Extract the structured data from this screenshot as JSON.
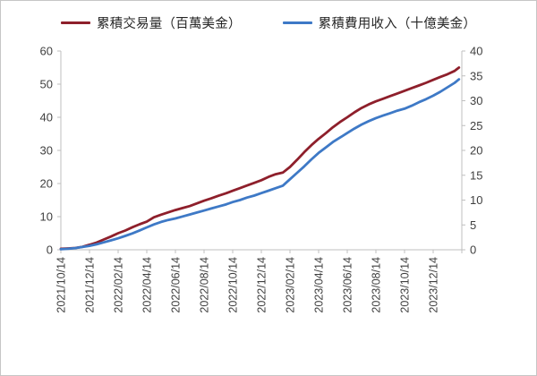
{
  "chart_data": {
    "type": "line",
    "legend_position": "top",
    "grid": false,
    "title": "",
    "xlabel": "",
    "ylabel_left": "",
    "ylabel_right": "",
    "x_tick_labels": [
      "2021/10/14",
      "2021/12/14",
      "2022/02/14",
      "2022/04/14",
      "2022/06/14",
      "2022/08/14",
      "2022/10/14",
      "2022/12/14",
      "2023/02/14",
      "2023/04/14",
      "2023/06/14",
      "2023/08/14",
      "2023/10/14",
      "2023/12/14"
    ],
    "left_axis": {
      "min": 0,
      "max": 60,
      "step": 10,
      "ticks": [
        0,
        10,
        20,
        30,
        40,
        50,
        60
      ]
    },
    "right_axis": {
      "min": 0,
      "max": 40,
      "step": 5,
      "ticks": [
        0,
        5,
        10,
        15,
        20,
        25,
        30,
        35,
        40
      ]
    },
    "axis_color": "#bfbfbf",
    "tick_label_color": "#3f3f3f",
    "series": [
      {
        "name": "累積交易量（百萬美金）",
        "axis": "left",
        "color": "#8e1f2b",
        "points": [
          [
            0,
            0.3
          ],
          [
            0.25,
            0.4
          ],
          [
            0.5,
            0.55
          ],
          [
            0.75,
            0.9
          ],
          [
            1,
            1.5
          ],
          [
            1.25,
            2.2
          ],
          [
            1.5,
            3.1
          ],
          [
            1.75,
            4.0
          ],
          [
            2,
            5.0
          ],
          [
            2.25,
            5.8
          ],
          [
            2.5,
            6.8
          ],
          [
            2.75,
            7.7
          ],
          [
            3,
            8.5
          ],
          [
            3.25,
            9.8
          ],
          [
            3.5,
            10.6
          ],
          [
            3.75,
            11.3
          ],
          [
            4,
            12.0
          ],
          [
            4.25,
            12.6
          ],
          [
            4.5,
            13.2
          ],
          [
            4.75,
            14.0
          ],
          [
            5,
            14.8
          ],
          [
            5.25,
            15.5
          ],
          [
            5.5,
            16.3
          ],
          [
            5.75,
            17.0
          ],
          [
            6,
            17.8
          ],
          [
            6.25,
            18.6
          ],
          [
            6.5,
            19.4
          ],
          [
            6.75,
            20.2
          ],
          [
            7,
            21.0
          ],
          [
            7.25,
            22.0
          ],
          [
            7.5,
            22.8
          ],
          [
            7.75,
            23.3
          ],
          [
            8,
            25.0
          ],
          [
            8.25,
            27.2
          ],
          [
            8.5,
            29.5
          ],
          [
            8.75,
            31.6
          ],
          [
            9,
            33.5
          ],
          [
            9.25,
            35.2
          ],
          [
            9.5,
            37.0
          ],
          [
            9.75,
            38.6
          ],
          [
            10,
            40.0
          ],
          [
            10.25,
            41.5
          ],
          [
            10.5,
            42.8
          ],
          [
            10.75,
            43.9
          ],
          [
            11,
            44.8
          ],
          [
            11.25,
            45.6
          ],
          [
            11.5,
            46.4
          ],
          [
            11.75,
            47.2
          ],
          [
            12,
            48.0
          ],
          [
            12.25,
            48.8
          ],
          [
            12.5,
            49.6
          ],
          [
            12.75,
            50.4
          ],
          [
            13,
            51.3
          ],
          [
            13.25,
            52.2
          ],
          [
            13.5,
            53.0
          ],
          [
            13.75,
            54.0
          ],
          [
            13.9,
            55.0
          ]
        ]
      },
      {
        "name": "累積費用收入（十億美金）",
        "axis": "right",
        "color": "#3e79c6",
        "points": [
          [
            0,
            0.1
          ],
          [
            0.25,
            0.2
          ],
          [
            0.5,
            0.35
          ],
          [
            0.75,
            0.55
          ],
          [
            1,
            0.8
          ],
          [
            1.25,
            1.1
          ],
          [
            1.5,
            1.5
          ],
          [
            1.75,
            1.9
          ],
          [
            2,
            2.3
          ],
          [
            2.25,
            2.8
          ],
          [
            2.5,
            3.3
          ],
          [
            2.75,
            3.9
          ],
          [
            3,
            4.5
          ],
          [
            3.25,
            5.1
          ],
          [
            3.5,
            5.6
          ],
          [
            3.75,
            6.0
          ],
          [
            4,
            6.3
          ],
          [
            4.25,
            6.7
          ],
          [
            4.5,
            7.1
          ],
          [
            4.75,
            7.5
          ],
          [
            5,
            7.9
          ],
          [
            5.25,
            8.3
          ],
          [
            5.5,
            8.7
          ],
          [
            5.75,
            9.1
          ],
          [
            6,
            9.6
          ],
          [
            6.25,
            10.0
          ],
          [
            6.5,
            10.5
          ],
          [
            6.75,
            10.9
          ],
          [
            7,
            11.4
          ],
          [
            7.25,
            11.9
          ],
          [
            7.5,
            12.4
          ],
          [
            7.75,
            12.9
          ],
          [
            8,
            14.2
          ],
          [
            8.25,
            15.5
          ],
          [
            8.5,
            16.8
          ],
          [
            8.75,
            18.2
          ],
          [
            9,
            19.5
          ],
          [
            9.25,
            20.6
          ],
          [
            9.5,
            21.7
          ],
          [
            9.75,
            22.6
          ],
          [
            10,
            23.5
          ],
          [
            10.25,
            24.4
          ],
          [
            10.5,
            25.2
          ],
          [
            10.75,
            25.9
          ],
          [
            11,
            26.5
          ],
          [
            11.25,
            27.0
          ],
          [
            11.5,
            27.5
          ],
          [
            11.75,
            28.0
          ],
          [
            12,
            28.4
          ],
          [
            12.25,
            29.0
          ],
          [
            12.5,
            29.7
          ],
          [
            12.75,
            30.3
          ],
          [
            13,
            31.0
          ],
          [
            13.25,
            31.8
          ],
          [
            13.5,
            32.7
          ],
          [
            13.75,
            33.6
          ],
          [
            13.9,
            34.3
          ]
        ]
      }
    ]
  },
  "legend": {
    "items": [
      {
        "label": "累積交易量（百萬美金）"
      },
      {
        "label": "累積費用收入（十億美金）"
      }
    ]
  }
}
